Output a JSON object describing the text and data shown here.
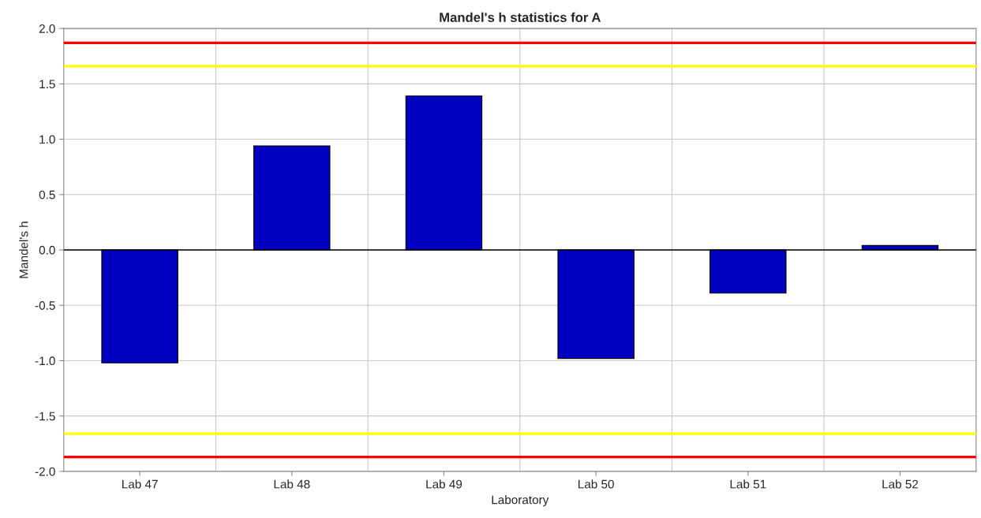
{
  "chart_data": {
    "type": "bar",
    "title": "Mandel's h statistics for A",
    "xlabel": "Laboratory",
    "ylabel": "Mandel's h",
    "categories": [
      "Lab 47",
      "Lab 48",
      "Lab 49",
      "Lab 50",
      "Lab 51",
      "Lab 52"
    ],
    "values": [
      -1.02,
      0.94,
      1.39,
      -0.98,
      -0.39,
      0.04
    ],
    "color": "#0000c0",
    "ylim": [
      -2.0,
      2.0
    ],
    "yticks": [
      {
        "value": -2.0,
        "label": "-2.0"
      },
      {
        "value": -1.5,
        "label": "-1.5"
      },
      {
        "value": -1.0,
        "label": "-1.0"
      },
      {
        "value": -0.5,
        "label": "-0.5"
      },
      {
        "value": 0,
        "label": "0.0"
      },
      {
        "value": 0.5,
        "label": "0.5"
      },
      {
        "value": 1.0,
        "label": "1.0"
      },
      {
        "value": 1.5,
        "label": "1.5"
      },
      {
        "value": 2.0,
        "label": "2.0"
      }
    ],
    "grid": true,
    "ref_lines": [
      {
        "axis": "y",
        "value": 0,
        "color": "#000000"
      },
      {
        "axis": "y",
        "value": 1.87,
        "color": "#ff0000"
      },
      {
        "axis": "y",
        "value": -1.87,
        "color": "#ff0000"
      },
      {
        "axis": "y",
        "value": 1.66,
        "color": "#ffff00"
      },
      {
        "axis": "y",
        "value": -1.66,
        "color": "#ffff00"
      }
    ]
  }
}
